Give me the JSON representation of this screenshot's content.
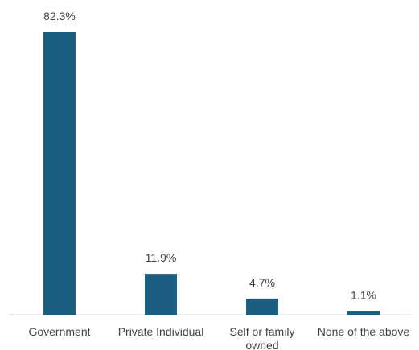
{
  "chart_data": {
    "type": "bar",
    "categories": [
      "Government",
      "Private Individual",
      "Self or family owned",
      "None of the above"
    ],
    "category_lines": [
      [
        "Government"
      ],
      [
        "Private Individual"
      ],
      [
        "Self or family",
        "owned"
      ],
      [
        "None of the above"
      ]
    ],
    "values": [
      82.3,
      11.9,
      4.7,
      1.1
    ],
    "data_labels": [
      "82.3%",
      "11.9%",
      "4.7%",
      "1.1%"
    ],
    "unit": "%",
    "title": "",
    "xlabel": "",
    "ylabel": "",
    "ylim": [
      0,
      100
    ],
    "grid": false,
    "legend": "none",
    "bar_color": "#1a5e82",
    "axis_color": "#d9d9d9",
    "text_color": "#404040"
  }
}
